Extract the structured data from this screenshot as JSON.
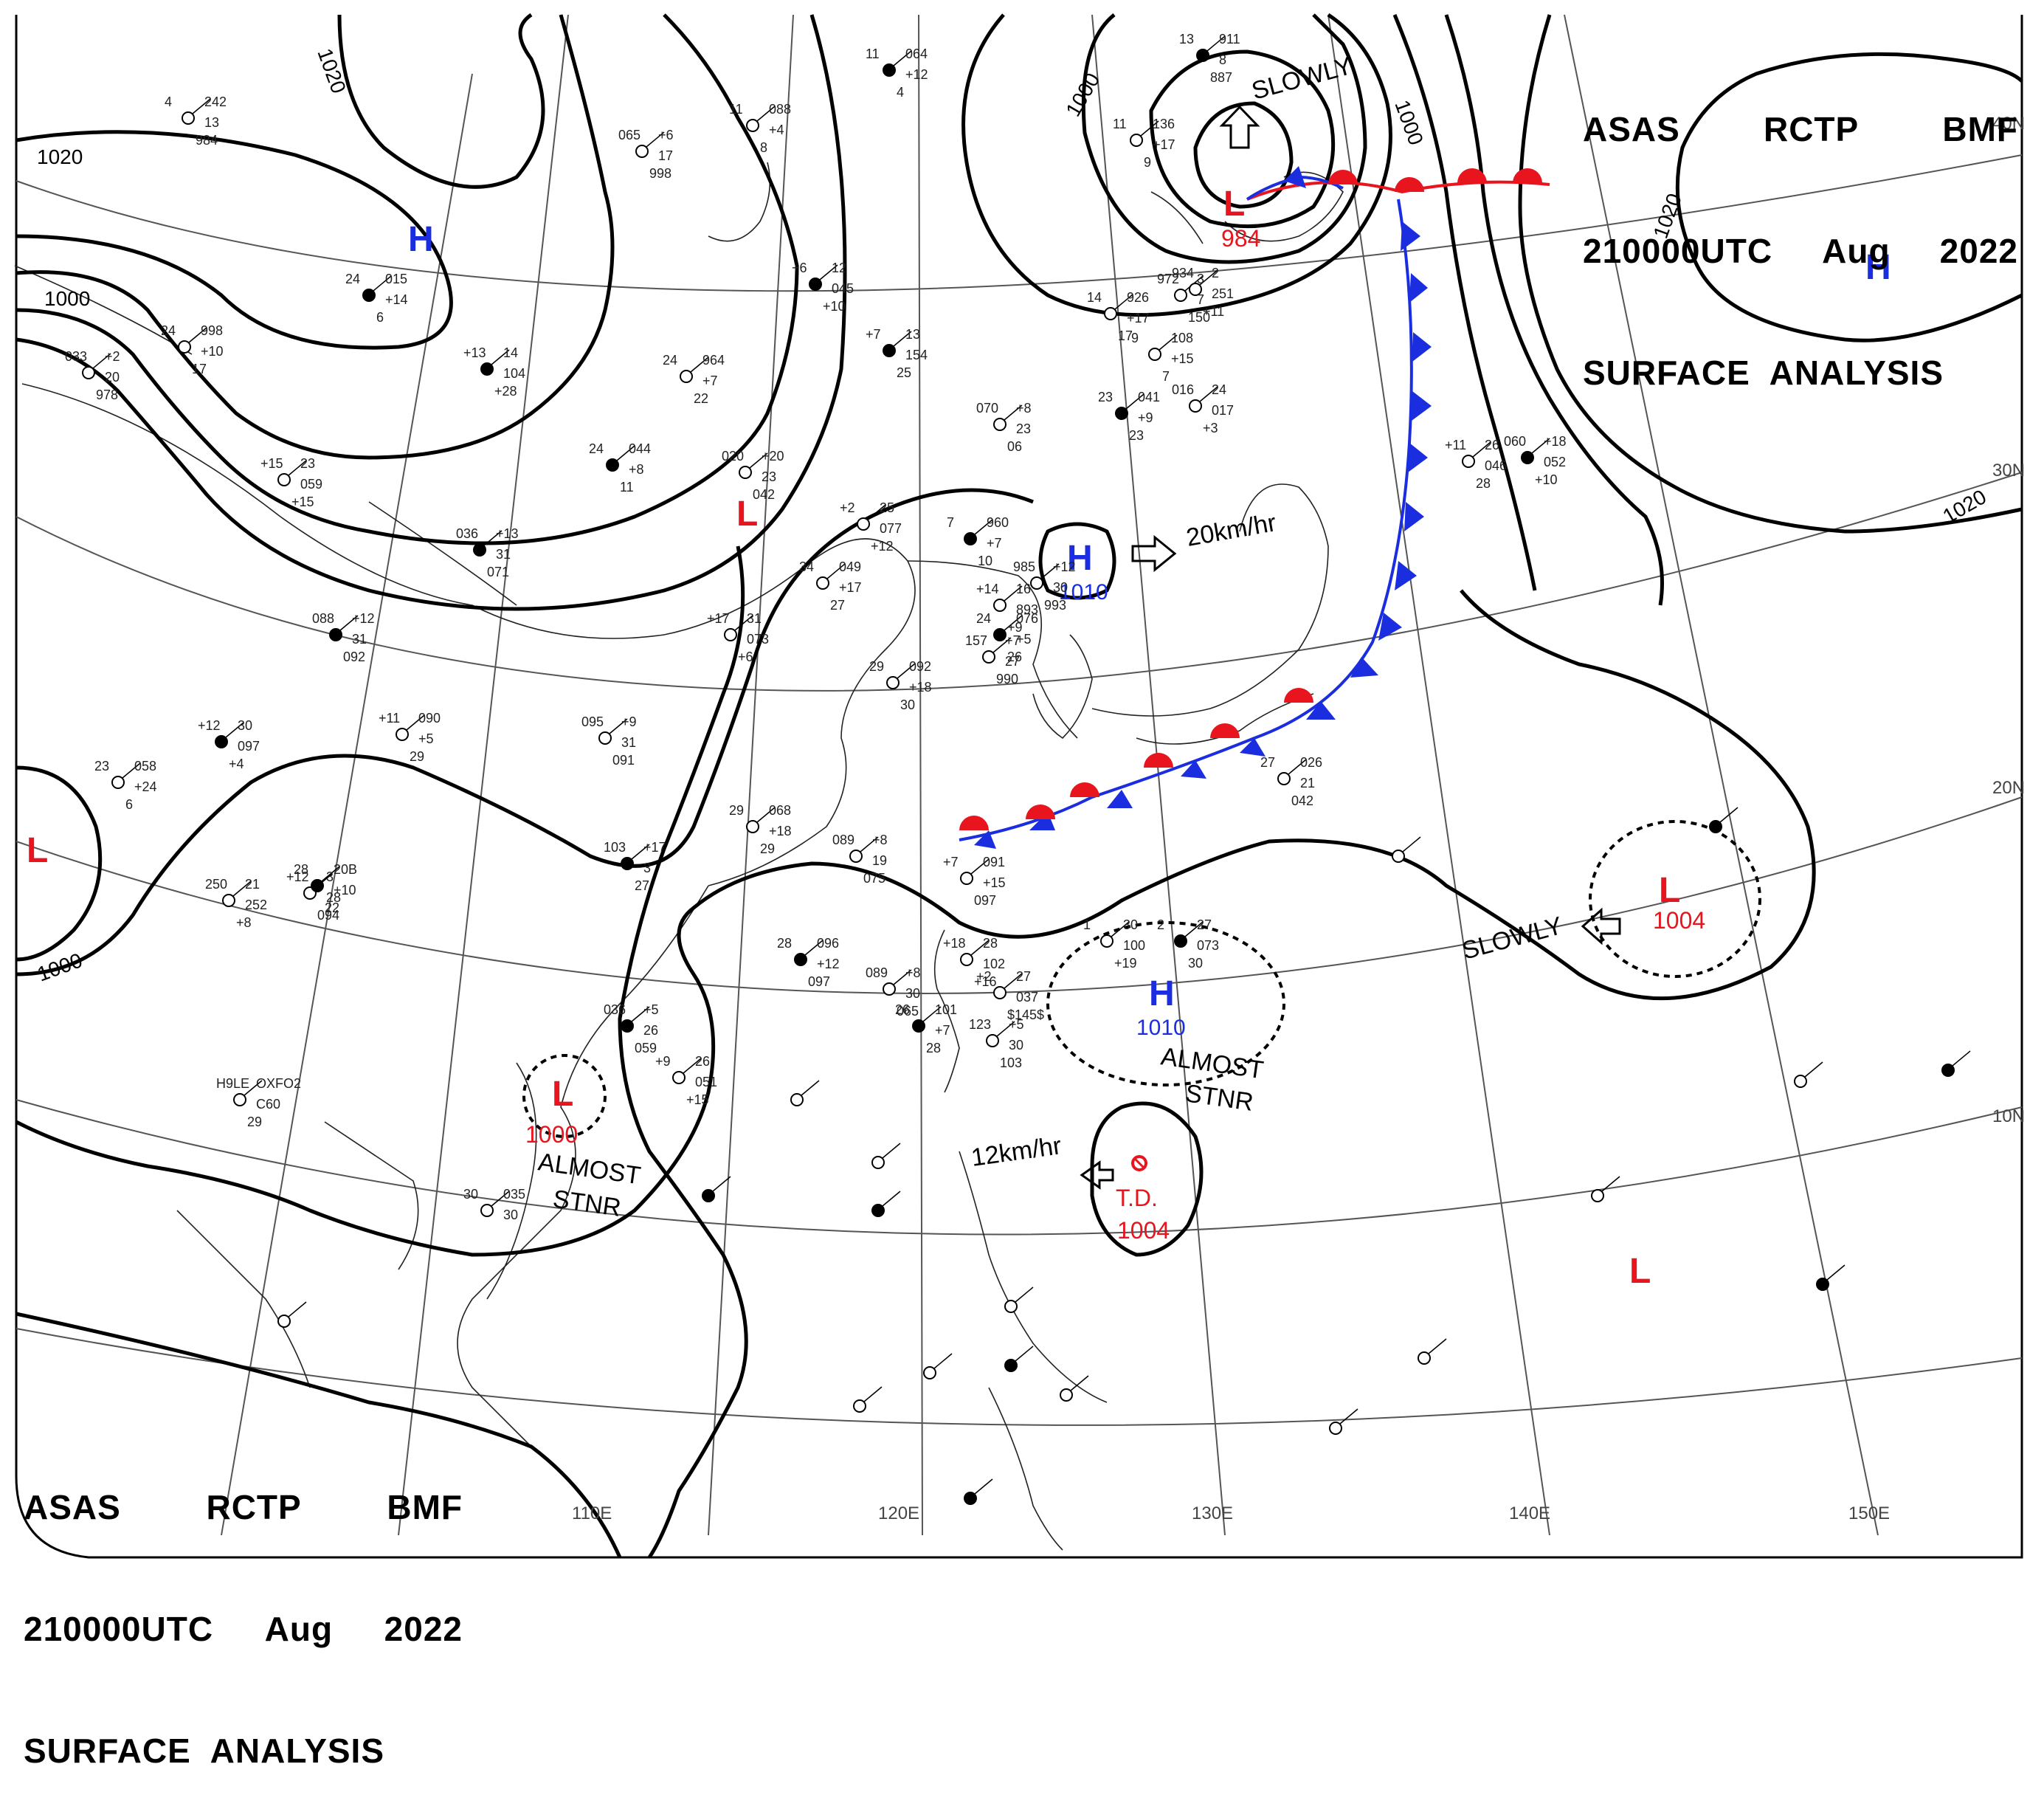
{
  "header": {
    "center": "ASAS",
    "agency": "RCTP",
    "origin": "BMF",
    "time": "210000UTC",
    "month": "Aug",
    "year": "2022",
    "product": "SURFACE  ANALYSIS"
  },
  "colors": {
    "low": "#e8141e",
    "high": "#1a2ee0",
    "front_red": "#e8141e",
    "front_blue": "#1a2ee0",
    "isobar": "#000000",
    "graticule": "#555555",
    "coast": "#222222"
  },
  "lat_labels": [
    "40N",
    "30N",
    "20N",
    "10N"
  ],
  "lon_labels": [
    "110E",
    "120E",
    "130E",
    "140E",
    "150E"
  ],
  "isobar_labels": [
    "1020",
    "1020",
    "1000",
    "1000",
    "1000",
    "1020",
    "1020",
    "1000"
  ],
  "pressure_centers": [
    {
      "type": "H",
      "value": ""
    },
    {
      "type": "H",
      "value": ""
    },
    {
      "type": "L",
      "value": "984"
    },
    {
      "type": "L",
      "value": ""
    },
    {
      "type": "L",
      "value": ""
    },
    {
      "type": "H",
      "value": "1010"
    },
    {
      "type": "H",
      "value": "1010"
    },
    {
      "type": "L",
      "value": "1004"
    },
    {
      "type": "L",
      "value": "1000"
    },
    {
      "type": "L",
      "value": ""
    }
  ],
  "tropical_depression": {
    "label": "T.D.",
    "value": "1004"
  },
  "motion_labels": [
    "SLOWLY",
    "20km/hr",
    "SLOWLY",
    "12km/hr"
  ],
  "stationary_labels": [
    {
      "line1": "ALMOST",
      "line2": "STNR"
    },
    {
      "line1": "ALMOST",
      "line2": "STNR"
    }
  ],
  "station_texts": [
    "11",
    "064",
    "+12",
    "4",
    "11",
    "088",
    "+4",
    "8",
    "4",
    "242",
    "13",
    "984",
    "13",
    "911",
    "8",
    "887",
    "11",
    "136",
    "+17",
    "9",
    "065",
    "+6",
    "17",
    "998",
    "+6",
    "12",
    "045",
    "+10",
    "14",
    "926",
    "+17",
    "17",
    "972",
    "3",
    "7",
    "150",
    "+7",
    "13",
    "154",
    "25",
    "934",
    "2",
    "251",
    "+11",
    "9",
    "108",
    "+15",
    "7",
    "24",
    "015",
    "+14",
    "6",
    "24",
    "998",
    "+10",
    "17",
    "033",
    "+2",
    "20",
    "978",
    "+13",
    "14",
    "104",
    "+28",
    "24",
    "964",
    "+7",
    "22",
    "016",
    "24",
    "017",
    "+3",
    "23",
    "041",
    "+9",
    "23",
    "070",
    "+8",
    "23",
    "06",
    "+15",
    "23",
    "059",
    "+15",
    "24",
    "044",
    "+8",
    "11",
    "020",
    "+20",
    "23",
    "042",
    "+2",
    "25",
    "077",
    "+12",
    "7",
    "960",
    "+7",
    "10",
    "985",
    "+12",
    "30",
    "993",
    "+14",
    "16",
    "893",
    "+9",
    "24",
    "076",
    "+5",
    "26",
    "157",
    "+7",
    "27",
    "990",
    "34",
    "049",
    "+17",
    "27",
    "036",
    "+13",
    "31",
    "071",
    "+17",
    "31",
    "073",
    "+6",
    "29",
    "092",
    "+18",
    "30",
    "088",
    "+12",
    "31",
    "092",
    "+11",
    "090",
    "+5",
    "29",
    "095",
    "+9",
    "31",
    "091",
    "+12",
    "30",
    "097",
    "+4",
    "27",
    "026",
    "21",
    "042",
    "+11",
    "26",
    "046",
    "28",
    "060",
    "+18",
    "052",
    "+10",
    "23",
    "058",
    "+24",
    "6",
    "29",
    "068",
    "+18",
    "29",
    "103",
    "+17",
    "3",
    "27",
    "089",
    "+8",
    "19",
    "075",
    "+7",
    "091",
    "+15",
    "097",
    "28",
    "096",
    "+12",
    "097",
    "+18",
    "28",
    "102",
    "+16",
    "1",
    "30",
    "100",
    "+19",
    "2",
    "27",
    "073",
    "30",
    "089",
    "+8",
    "30",
    "065",
    "+2",
    "27",
    "037",
    "$145$",
    "26",
    "101",
    "+7",
    "28",
    "123",
    "+5",
    "30",
    "103",
    "+12",
    "3",
    "28",
    "094",
    "28",
    "20B",
    "+10",
    "22",
    "250",
    "21",
    "252",
    "+8",
    "H9LE",
    "OXFO2",
    "C60",
    "29",
    "036",
    "+5",
    "26",
    "059",
    "+9",
    "26",
    "051",
    "+15",
    "30",
    "035",
    "30"
  ]
}
